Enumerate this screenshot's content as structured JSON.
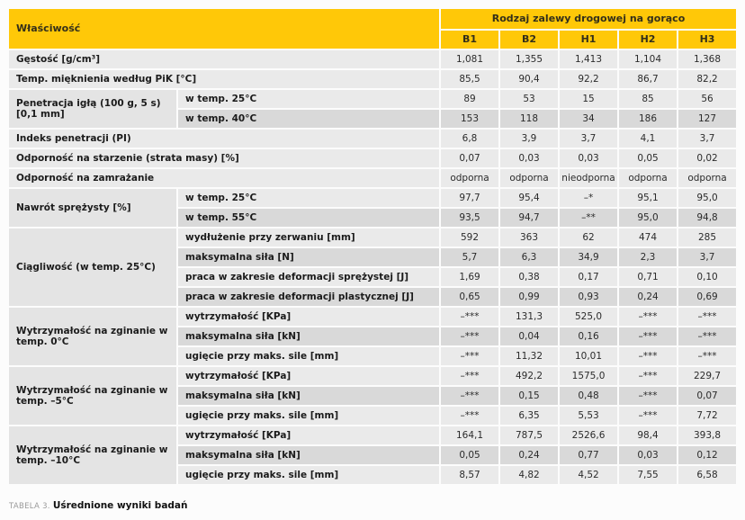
{
  "caption": {
    "prefix": "TABELA 3.",
    "title": "Uśrednione wyniki badań"
  },
  "colors": {
    "header_yellow": "#FFC808",
    "row_light": "#EAEAEA",
    "row_dark": "#D9D9D9",
    "row_span": "#E4E4E4",
    "gridline": "#FFFFFF"
  },
  "table": {
    "corner_header": "Właściwość",
    "group_header": "Rodzaj zalewy drogowej na gorąco",
    "columns": [
      "B1",
      "B2",
      "H1",
      "H2",
      "H3"
    ],
    "sections": [
      {
        "label": "Gęstość [g/cm³]",
        "rows": [
          {
            "sub": "",
            "values": [
              "1,081",
              "1,355",
              "1,413",
              "1,104",
              "1,368"
            ]
          }
        ]
      },
      {
        "label": "Temp. mięknienia według PiK [°C]",
        "rows": [
          {
            "sub": "",
            "values": [
              "85,5",
              "90,4",
              "92,2",
              "86,7",
              "82,2"
            ]
          }
        ]
      },
      {
        "label": "Penetracja igłą (100 g, 5 s) [0,1 mm]",
        "rows": [
          {
            "sub": "w temp. 25°C",
            "values": [
              "89",
              "53",
              "15",
              "85",
              "56"
            ]
          },
          {
            "sub": "w temp. 40°C",
            "values": [
              "153",
              "118",
              "34",
              "186",
              "127"
            ]
          }
        ]
      },
      {
        "label": "Indeks penetracji (PI)",
        "rows": [
          {
            "sub": "",
            "values": [
              "6,8",
              "3,9",
              "3,7",
              "4,1",
              "3,7"
            ]
          }
        ]
      },
      {
        "label": "Odporność na starzenie (strata masy) [%]",
        "rows": [
          {
            "sub": "",
            "values": [
              "0,07",
              "0,03",
              "0,03",
              "0,05",
              "0,02"
            ]
          }
        ]
      },
      {
        "label": "Odporność na zamrażanie",
        "rows": [
          {
            "sub": "",
            "values": [
              "odporna",
              "odporna",
              "nieodporna",
              "odporna",
              "odporna"
            ]
          }
        ]
      },
      {
        "label": "Nawrót sprężysty [%]",
        "rows": [
          {
            "sub": "w temp. 25°C",
            "values": [
              "97,7",
              "95,4",
              "–*",
              "95,1",
              "95,0"
            ]
          },
          {
            "sub": "w temp. 55°C",
            "values": [
              "93,5",
              "94,7",
              "–**",
              "95,0",
              "94,8"
            ]
          }
        ]
      },
      {
        "label": "Ciągliwość (w temp. 25°C)",
        "rows": [
          {
            "sub": "wydłużenie przy zerwaniu [mm]",
            "values": [
              "592",
              "363",
              "62",
              "474",
              "285"
            ]
          },
          {
            "sub": "maksymalna siła [N]",
            "values": [
              "5,7",
              "6,3",
              "34,9",
              "2,3",
              "3,7"
            ]
          },
          {
            "sub": "praca w zakresie deformacji sprężystej [J]",
            "values": [
              "1,69",
              "0,38",
              "0,17",
              "0,71",
              "0,10"
            ]
          },
          {
            "sub": "praca w zakresie deformacji plastycznej [J]",
            "values": [
              "0,65",
              "0,99",
              "0,93",
              "0,24",
              "0,69"
            ]
          }
        ]
      },
      {
        "label": "Wytrzymałość na zginanie w temp. 0°C",
        "rows": [
          {
            "sub": "wytrzymałość [KPa]",
            "values": [
              "–***",
              "131,3",
              "525,0",
              "–***",
              "–***"
            ]
          },
          {
            "sub": "maksymalna siła [kN]",
            "values": [
              "–***",
              "0,04",
              "0,16",
              "–***",
              "–***"
            ]
          },
          {
            "sub": "ugięcie przy maks. sile [mm]",
            "values": [
              "–***",
              "11,32",
              "10,01",
              "–***",
              "–***"
            ]
          }
        ]
      },
      {
        "label": "Wytrzymałość na zginanie w temp. –5°C",
        "rows": [
          {
            "sub": "wytrzymałość [KPa]",
            "values": [
              "–***",
              "492,2",
              "1575,0",
              "–***",
              "229,7"
            ]
          },
          {
            "sub": "maksymalna siła [kN]",
            "values": [
              "–***",
              "0,15",
              "0,48",
              "–***",
              "0,07"
            ]
          },
          {
            "sub": "ugięcie przy maks. sile [mm]",
            "values": [
              "–***",
              "6,35",
              "5,53",
              "–***",
              "7,72"
            ]
          }
        ]
      },
      {
        "label": "Wytrzymałość na zginanie w temp. –10°C",
        "rows": [
          {
            "sub": "wytrzymałość [KPa]",
            "values": [
              "164,1",
              "787,5",
              "2526,6",
              "98,4",
              "393,8"
            ]
          },
          {
            "sub": "maksymalna siła [kN]",
            "values": [
              "0,05",
              "0,24",
              "0,77",
              "0,03",
              "0,12"
            ]
          },
          {
            "sub": "ugięcie przy maks. sile [mm]",
            "values": [
              "8,57",
              "4,82",
              "4,52",
              "7,55",
              "6,58"
            ]
          }
        ]
      }
    ]
  }
}
